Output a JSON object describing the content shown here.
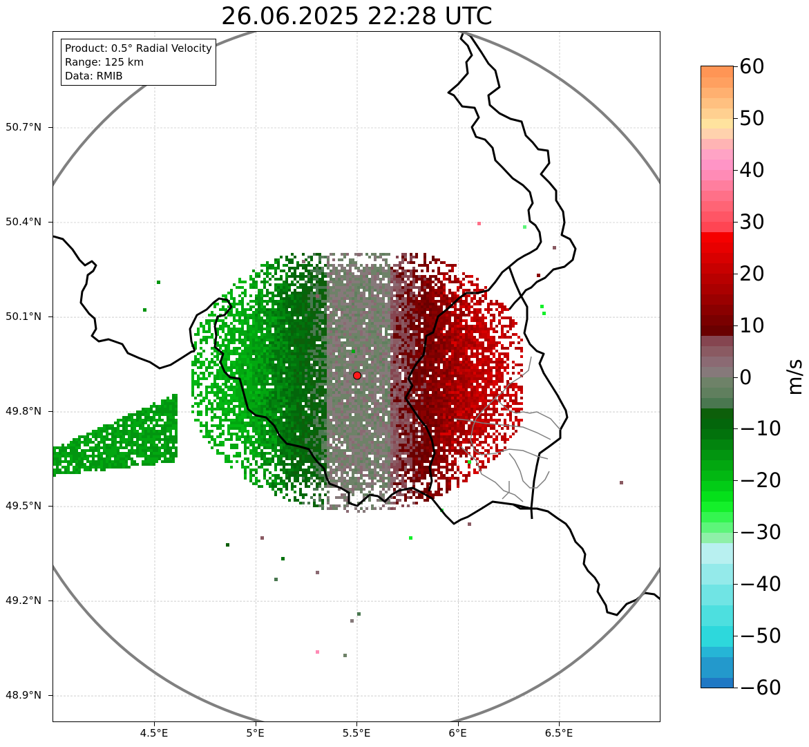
{
  "title": "26.06.2025 22:28 UTC",
  "info": {
    "product": "Product: 0.5° Radial Velocity",
    "range": "Range: 125 km",
    "data_source": "Data: RMIB"
  },
  "map": {
    "lon_range": [
      4.0,
      7.0
    ],
    "lat_range": [
      48.8,
      51.0
    ],
    "radar_site": {
      "lon": 5.5,
      "lat": 49.915
    },
    "range_ring_color": "#808080",
    "border_color": "#000000",
    "region_border_color": "#808080",
    "lat_ticks": [
      {
        "value": 50.7,
        "label": "50.7°N"
      },
      {
        "value": 50.4,
        "label": "50.4°N"
      },
      {
        "value": 50.1,
        "label": "50.1°N"
      },
      {
        "value": 49.8,
        "label": "49.8°N"
      },
      {
        "value": 49.5,
        "label": "49.5°N"
      },
      {
        "value": 49.2,
        "label": "49.2°N"
      },
      {
        "value": 48.9,
        "label": "48.9°N"
      }
    ],
    "lon_ticks": [
      {
        "value": 4.5,
        "label": "4.5°E"
      },
      {
        "value": 5.0,
        "label": "5°E"
      },
      {
        "value": 5.5,
        "label": "5.5°E"
      },
      {
        "value": 6.0,
        "label": "6°E"
      },
      {
        "value": 6.5,
        "label": "6.5°E"
      }
    ]
  },
  "colorbar": {
    "unit": "m/s",
    "min": -60,
    "max": 60,
    "ticks": [
      "60",
      "50",
      "40",
      "30",
      "20",
      "10",
      "0",
      "−10",
      "−20",
      "−30",
      "−40",
      "−50",
      "−60"
    ],
    "bands": [
      {
        "from": -60,
        "to": -58,
        "color": "#1f78c4"
      },
      {
        "from": -58,
        "to": -54,
        "color": "#2399cc"
      },
      {
        "from": -54,
        "to": -52,
        "color": "#26b5d6"
      },
      {
        "from": -52,
        "to": -48,
        "color": "#2dd8dc"
      },
      {
        "from": -48,
        "to": -44,
        "color": "#4ddfdf"
      },
      {
        "from": -44,
        "to": -40,
        "color": "#70e4e4"
      },
      {
        "from": -40,
        "to": -36,
        "color": "#94eaea"
      },
      {
        "from": -36,
        "to": -32,
        "color": "#b8f0f0"
      },
      {
        "from": -32,
        "to": -30,
        "color": "#8ef0a8"
      },
      {
        "from": -30,
        "to": -28,
        "color": "#5df57a"
      },
      {
        "from": -28,
        "to": -26,
        "color": "#34f550"
      },
      {
        "from": -26,
        "to": -24,
        "color": "#14f02a"
      },
      {
        "from": -24,
        "to": -22,
        "color": "#05e01a"
      },
      {
        "from": -22,
        "to": -20,
        "color": "#02cc16"
      },
      {
        "from": -20,
        "to": -18,
        "color": "#02b812"
      },
      {
        "from": -18,
        "to": -16,
        "color": "#02a710"
      },
      {
        "from": -16,
        "to": -14,
        "color": "#029510"
      },
      {
        "from": -14,
        "to": -12,
        "color": "#02840e"
      },
      {
        "from": -12,
        "to": -10,
        "color": "#02720c"
      },
      {
        "from": -10,
        "to": -8,
        "color": "#03660b"
      },
      {
        "from": -8,
        "to": -6,
        "color": "#0d5f0a"
      },
      {
        "from": -6,
        "to": -4,
        "color": "#4a7750"
      },
      {
        "from": -4,
        "to": -2,
        "color": "#607f5e"
      },
      {
        "from": -2,
        "to": 0,
        "color": "#6e8268"
      },
      {
        "from": 0,
        "to": 2,
        "color": "#86797a"
      },
      {
        "from": 2,
        "to": 4,
        "color": "#8b6a73"
      },
      {
        "from": 4,
        "to": 6,
        "color": "#8a5a62"
      },
      {
        "from": 6,
        "to": 8,
        "color": "#854550"
      },
      {
        "from": 8,
        "to": 10,
        "color": "#6a0000"
      },
      {
        "from": 10,
        "to": 12,
        "color": "#7a0000"
      },
      {
        "from": 12,
        "to": 14,
        "color": "#8a0000"
      },
      {
        "from": 14,
        "to": 16,
        "color": "#9a0000"
      },
      {
        "from": 16,
        "to": 18,
        "color": "#aa0000"
      },
      {
        "from": 18,
        "to": 20,
        "color": "#b80000"
      },
      {
        "from": 20,
        "to": 22,
        "color": "#c80000"
      },
      {
        "from": 22,
        "to": 24,
        "color": "#d80000"
      },
      {
        "from": 24,
        "to": 26,
        "color": "#e80000"
      },
      {
        "from": 26,
        "to": 28,
        "color": "#f50000"
      },
      {
        "from": 28,
        "to": 30,
        "color": "#ff4553"
      },
      {
        "from": 30,
        "to": 32,
        "color": "#ff5565"
      },
      {
        "from": 32,
        "to": 34,
        "color": "#ff6475"
      },
      {
        "from": 34,
        "to": 36,
        "color": "#ff7088"
      },
      {
        "from": 36,
        "to": 38,
        "color": "#ff7e9e"
      },
      {
        "from": 38,
        "to": 40,
        "color": "#ff8bb6"
      },
      {
        "from": 40,
        "to": 42,
        "color": "#ff95c6"
      },
      {
        "from": 42,
        "to": 44,
        "color": "#ffa3c5"
      },
      {
        "from": 44,
        "to": 46,
        "color": "#ffb4b4"
      },
      {
        "from": 46,
        "to": 48,
        "color": "#ffd2ad"
      },
      {
        "from": 48,
        "to": 50,
        "color": "#ffe39e"
      },
      {
        "from": 50,
        "to": 52,
        "color": "#ffd090"
      },
      {
        "from": 52,
        "to": 54,
        "color": "#ffc080"
      },
      {
        "from": 54,
        "to": 56,
        "color": "#ffb070"
      },
      {
        "from": 56,
        "to": 58,
        "color": "#ffa060"
      },
      {
        "from": 58,
        "to": 60,
        "color": "#ff9555"
      }
    ]
  }
}
